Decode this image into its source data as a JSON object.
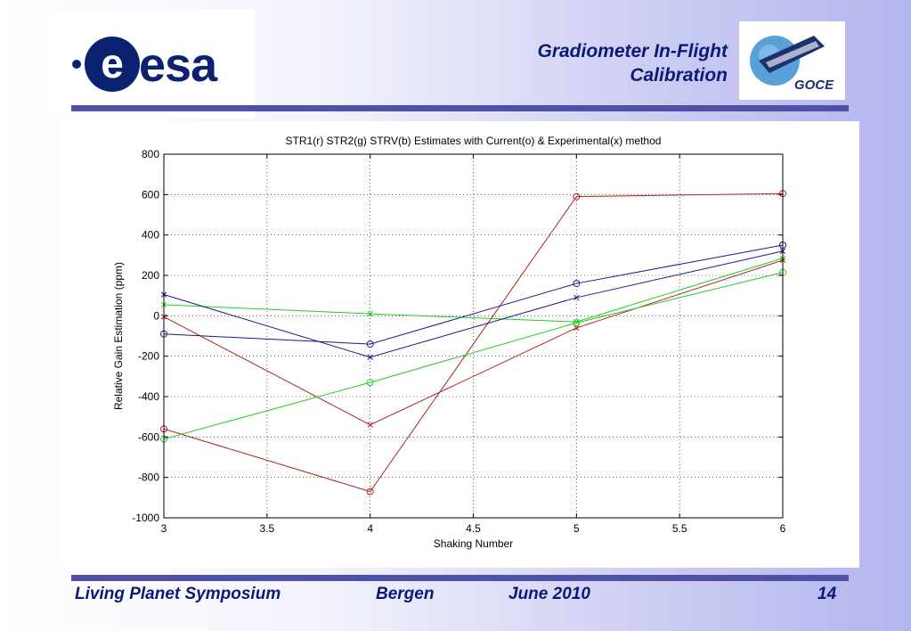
{
  "header": {
    "title_line1": "Gradiometer In-Flight",
    "title_line2": "Calibration",
    "esa_logo_text": "esa",
    "goce_logo_text": "GOCE"
  },
  "footer": {
    "event": "Living Planet Symposium",
    "location": "Bergen",
    "date": "June 2010",
    "page_number": "14"
  },
  "colors": {
    "title": "#0b1a78",
    "rule": "#4f51a6",
    "str1": "#b22222",
    "str2": "#22cc22",
    "strv": "#1a1a8c"
  },
  "chart_data": {
    "type": "line",
    "title": "STR1(r) STR2(g) STRV(b) Estimates with Current(o) & Experimental(x) method",
    "xlabel": "Shaking Number",
    "ylabel": "Relative Gain Estimation (ppm)",
    "xlim": [
      3,
      6
    ],
    "ylim": [
      -1000,
      800
    ],
    "xticks": [
      3,
      3.5,
      4,
      4.5,
      5,
      5.5,
      6
    ],
    "xtick_labels": [
      "3",
      "3.5",
      "4",
      "4.5",
      "5",
      "5.5",
      "6"
    ],
    "yticks": [
      -1000,
      -800,
      -600,
      -400,
      -200,
      0,
      200,
      400,
      600,
      800
    ],
    "ytick_labels": [
      "-1000",
      "-800",
      "-600",
      "-400",
      "-200",
      "0",
      "200",
      "400",
      "600",
      "800"
    ],
    "grid": true,
    "x": [
      3,
      4,
      5,
      6
    ],
    "series": [
      {
        "color": "#b22222",
        "marker": "o",
        "values": [
          -560,
          -870,
          590,
          605
        ]
      },
      {
        "color": "#b22222",
        "marker": "x",
        "values": [
          -5,
          -540,
          -60,
          275
        ]
      },
      {
        "color": "#22cc22",
        "marker": "o",
        "values": [
          -610,
          -330,
          -35,
          215
        ]
      },
      {
        "color": "#22cc22",
        "marker": "x",
        "values": [
          55,
          10,
          -30,
          285
        ]
      },
      {
        "color": "#1a1a8c",
        "marker": "o",
        "values": [
          -90,
          -140,
          160,
          350
        ]
      },
      {
        "color": "#1a1a8c",
        "marker": "x",
        "values": [
          105,
          -205,
          90,
          320
        ]
      }
    ]
  }
}
